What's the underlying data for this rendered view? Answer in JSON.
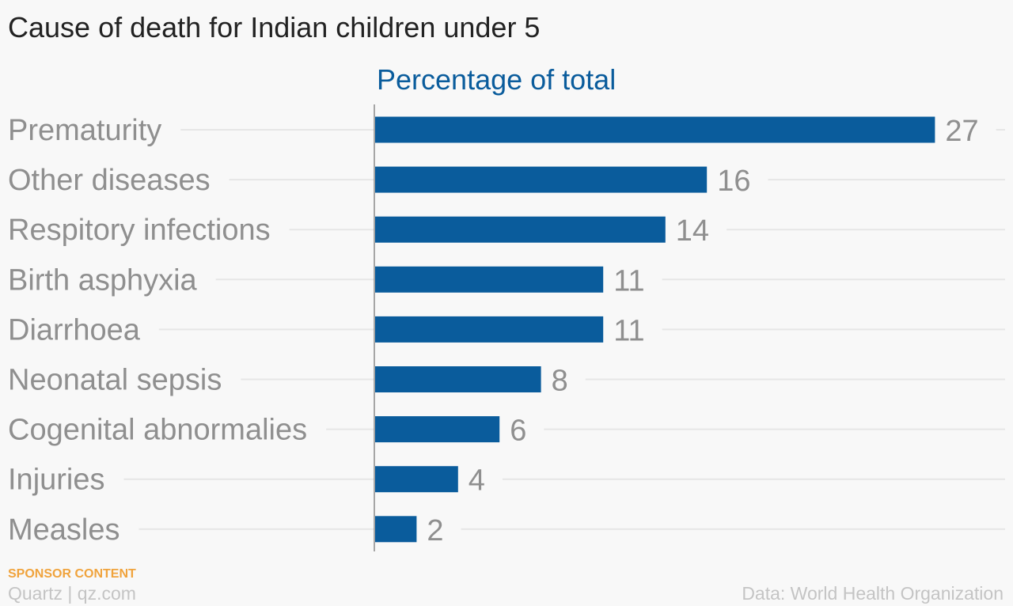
{
  "chart_data": {
    "type": "bar",
    "orientation": "horizontal",
    "title": "Cause of death for Indian children under 5",
    "subtitle": "Percentage of total",
    "categories": [
      "Prematurity",
      "Other diseases",
      "Respitory infections",
      "Birth asphyxia",
      "Diarrhoea",
      "Neonatal sepsis",
      "Cogenital abnormalies",
      "Injuries",
      "Measles"
    ],
    "values": [
      27,
      16,
      14,
      11,
      11,
      8,
      6,
      4,
      2
    ],
    "xlim": [
      0,
      27
    ],
    "grid": true,
    "legend": "none",
    "colors": {
      "bar": "#0a5c9c",
      "category_label": "#8f8f8f",
      "value_label": "#8f8f8f",
      "gridline": "#e6e6e6",
      "axis": "#8a8a8a"
    }
  },
  "footer": {
    "sponsor": "SPONSOR CONTENT",
    "brand": "Quartz | qz.com",
    "source": "Data: World Health Organization"
  }
}
